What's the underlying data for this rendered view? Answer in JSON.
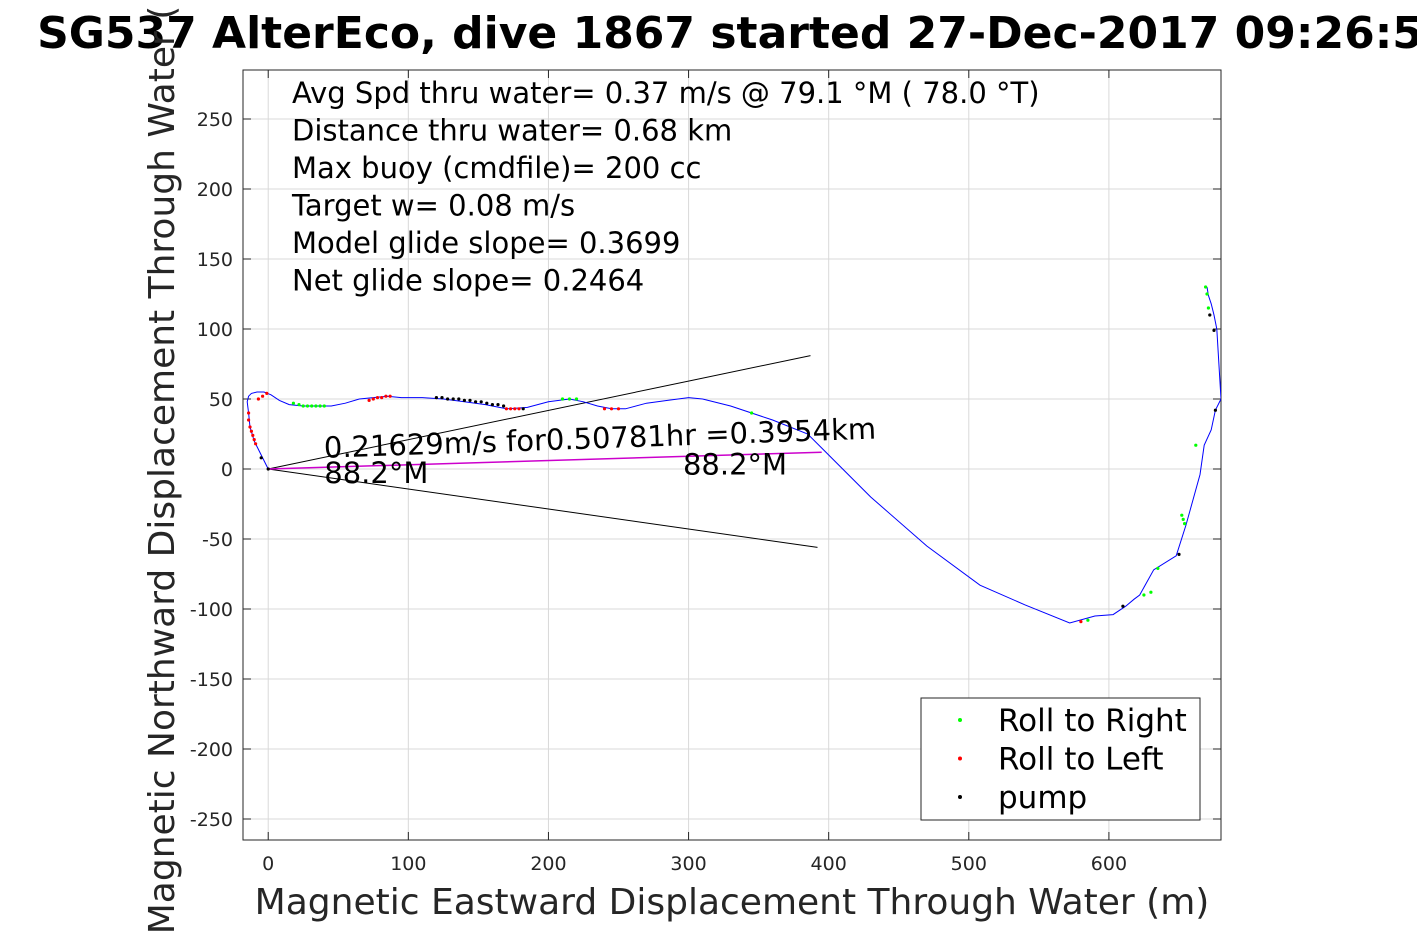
{
  "chart_data": {
    "type": "line",
    "title": "SG537 AlterEco, dive 1867 started 27-Dec-2017 09:26:5",
    "xlabel": "Magnetic Eastward Displacement Through Water (m)",
    "ylabel": "Magnetic Northward Displacement Through Water (",
    "xlim": [
      -18,
      680
    ],
    "ylim": [
      -265,
      285
    ],
    "xticks": [
      0,
      100,
      200,
      300,
      400,
      500,
      600
    ],
    "yticks": [
      250,
      200,
      150,
      100,
      50,
      0,
      -50,
      -100,
      -150,
      -200,
      -250
    ],
    "xtick_labels": [
      "0",
      "100",
      "200",
      "300",
      "400",
      "500",
      "600"
    ],
    "ytick_labels": [
      "250",
      "200",
      "150",
      "100",
      "50",
      "0",
      "-50",
      "-100",
      "-150",
      "-200",
      "-250"
    ],
    "grid": true,
    "info_lines": [
      "Avg Spd thru water=  0.37 m/s @  79.1 °M ( 78.0 °T)",
      "Distance thru water=  0.68 km",
      "Max buoy (cmdfile)= 200 cc",
      "Target w= 0.08 m/s",
      "Model glide slope= 0.3699",
      "Net glide slope= 0.2464"
    ],
    "annotations": [
      {
        "text": "0.21629m/s for0.50781hr =0.3954km",
        "x": 40,
        "y": 8,
        "rotate": -2
      },
      {
        "text": "88.2°M",
        "x": 40,
        "y": -10,
        "rotate": 0
      },
      {
        "text": "88.2°M",
        "x": 296,
        "y": -4,
        "rotate": 0
      }
    ],
    "current_lines": [
      {
        "x": [
          0,
          387
        ],
        "y": [
          0,
          81
        ]
      },
      {
        "x": [
          0,
          392
        ],
        "y": [
          0,
          -56
        ]
      },
      {
        "x": [
          0,
          395
        ],
        "y": [
          0,
          12
        ]
      }
    ],
    "track": {
      "x": [
        0,
        -5,
        -10,
        -13,
        -14,
        -15,
        -14,
        -12,
        -8,
        -3,
        2,
        8,
        15,
        25,
        35,
        45,
        55,
        65,
        75,
        85,
        95,
        110,
        125,
        140,
        155,
        170,
        185,
        200,
        215,
        225,
        235,
        245,
        255,
        270,
        285,
        300,
        310,
        330,
        360,
        385,
        395,
        430,
        470,
        508,
        540,
        572,
        590,
        603,
        612,
        618,
        622,
        632,
        648,
        655,
        665,
        668,
        673,
        676,
        680,
        677,
        675,
        673,
        671,
        670
      ],
      "y": [
        0,
        10,
        20,
        30,
        40,
        48,
        52,
        54,
        55,
        55,
        53,
        49,
        46,
        45,
        45,
        45,
        47,
        50,
        51,
        52,
        51,
        51,
        50,
        48,
        46,
        43,
        44,
        48,
        50,
        48,
        45,
        43,
        43,
        47,
        49,
        51,
        50,
        45,
        35,
        25,
        15,
        -20,
        -55,
        -83,
        -97,
        -110,
        -105,
        -104,
        -98,
        -93,
        -90,
        -72,
        -62,
        -40,
        -4,
        17,
        28,
        42,
        50,
        100,
        110,
        118,
        124,
        130
      ]
    },
    "series": [
      {
        "name": "Roll to Right",
        "color": "#00ff00",
        "x": [
          18,
          22,
          25,
          28,
          31,
          34,
          37,
          40,
          210,
          215,
          220,
          345,
          585,
          625,
          630,
          635,
          652,
          653,
          654,
          662,
          669,
          670,
          671
        ],
        "y": [
          47,
          46,
          45,
          45,
          45,
          45,
          45,
          45,
          50,
          50,
          50,
          40,
          -108,
          -90,
          -88,
          -71,
          -33,
          -36,
          -39,
          17,
          130,
          125,
          115
        ]
      },
      {
        "name": "Roll to Left",
        "color": "#ff0000",
        "x": [
          -14,
          -14,
          -13,
          -12,
          -11,
          -10,
          -9,
          -7,
          -4,
          -1,
          72,
          75,
          78,
          81,
          84,
          87,
          170,
          173,
          176,
          179,
          240,
          245,
          250,
          580
        ],
        "y": [
          40,
          35,
          30,
          27,
          24,
          21,
          18,
          50,
          52,
          54,
          49,
          50,
          51,
          51,
          52,
          52,
          43,
          43,
          43,
          43,
          43,
          43,
          43,
          -109
        ]
      },
      {
        "name": "pump",
        "color": "#000000",
        "x": [
          0,
          -5,
          120,
          124,
          128,
          132,
          136,
          140,
          144,
          148,
          152,
          156,
          160,
          164,
          168,
          182,
          610,
          650,
          672,
          675,
          676
        ],
        "y": [
          0,
          8,
          51,
          51,
          50,
          50,
          50,
          49,
          49,
          48,
          48,
          47,
          46,
          46,
          45,
          43,
          -98,
          -61,
          110,
          99,
          42
        ]
      }
    ],
    "legend": {
      "placement": "bottom-right",
      "entries": [
        "Roll to Right",
        "Roll to Left",
        "pump"
      ]
    },
    "colors": {
      "track": "#0000ff",
      "current_track": "#cc00cc",
      "grid": "#d9d9d9",
      "axis": "#262626"
    }
  }
}
